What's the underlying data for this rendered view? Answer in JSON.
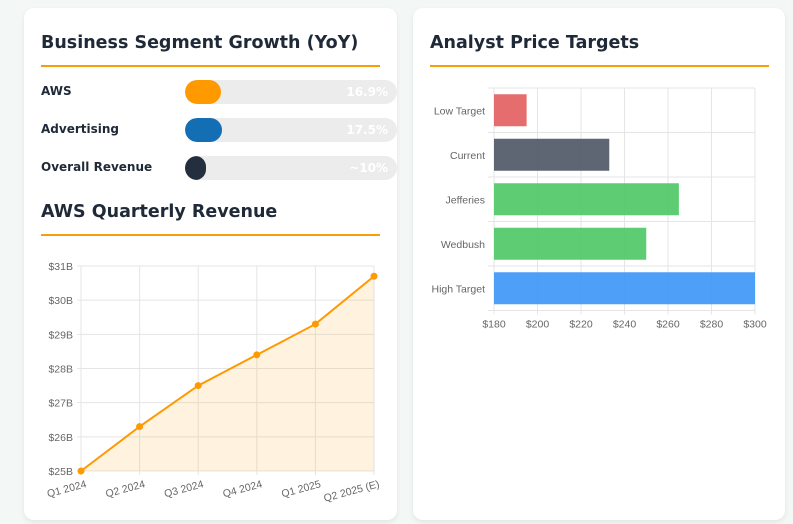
{
  "segments": {
    "title": "Business Segment Growth (YoY)",
    "items": [
      {
        "label": "AWS",
        "value_text": "16.9%",
        "percent": 16.9,
        "color": "#ff9900"
      },
      {
        "label": "Advertising",
        "value_text": "17.5%",
        "percent": 17.5,
        "color": "#146eb4"
      },
      {
        "label": "Overall Revenue",
        "value_text": "~10%",
        "percent": 10,
        "color": "#232f3e"
      }
    ]
  },
  "aws_revenue": {
    "title": "AWS Quarterly Revenue"
  },
  "analyst": {
    "title": "Analyst Price Targets"
  },
  "chart_data": [
    {
      "type": "area",
      "categories": [
        "Q1 2024",
        "Q2 2024",
        "Q3 2024",
        "Q4 2024",
        "Q1 2025",
        "Q2 2025 (E)"
      ],
      "values": [
        25.0,
        26.3,
        27.5,
        28.4,
        29.3,
        30.7
      ],
      "ylim": [
        25,
        31
      ],
      "yticks": [
        "$25B",
        "$26B",
        "$27B",
        "$28B",
        "$29B",
        "$30B",
        "$31B"
      ],
      "grid": true,
      "color": "#ff9900"
    },
    {
      "type": "bar",
      "orientation": "horizontal",
      "categories": [
        "Low Target",
        "Current",
        "Jefferies",
        "Wedbush",
        "High Target"
      ],
      "values": [
        195,
        233,
        265,
        250,
        300
      ],
      "colors": [
        "#e35d5d",
        "#4b5563",
        "#4cc763",
        "#4cc763",
        "#3b95f6"
      ],
      "xlim": [
        180,
        300
      ],
      "xticks": [
        "$180",
        "$200",
        "$220",
        "$240",
        "$260",
        "$280",
        "$300"
      ],
      "grid": true
    }
  ]
}
